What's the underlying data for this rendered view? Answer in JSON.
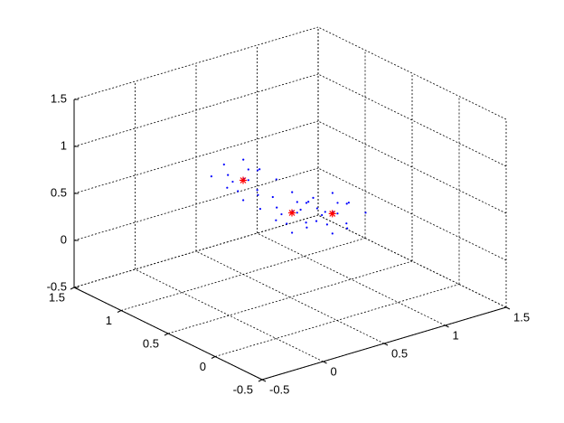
{
  "chart_data": {
    "type": "scatter3d",
    "xlim": [
      -0.5,
      1.5
    ],
    "ylim": [
      -0.5,
      1.5
    ],
    "zlim": [
      -0.5,
      1.5
    ],
    "xticks": [
      -0.5,
      0,
      0.5,
      1,
      1.5
    ],
    "yticks": [
      -0.5,
      0,
      0.5,
      1,
      1.5
    ],
    "zticks": [
      -0.5,
      0,
      0.5,
      1,
      1.5
    ],
    "grid": true,
    "series": [
      {
        "color": "#0000ff",
        "marker": "dot",
        "x": [
          0.58,
          0.4,
          0.62,
          0.45,
          0.53,
          0.36,
          0.56,
          0.65,
          0.42,
          0.5,
          0.6,
          0.38,
          0.54,
          0.47,
          0.68,
          0.34,
          0.98,
          0.8,
          1.02,
          0.85,
          0.93,
          0.76,
          0.96,
          1.05,
          0.82,
          0.9,
          1.0,
          0.78,
          0.94,
          0.87,
          1.08,
          0.74,
          1.08,
          0.9,
          1.12,
          0.95,
          1.03,
          0.86,
          1.06,
          1.15,
          0.92,
          1.0,
          1.1,
          0.88,
          1.04,
          0.97,
          1.18,
          0.84
        ],
        "y": [
          0.95,
          1.04,
          1.1,
          0.88,
          1.15,
          0.98,
          0.92,
          1.02,
          1.1,
          0.85,
          1.12,
          0.9,
          1.05,
          0.96,
          0.88,
          1.13,
          0.95,
          1.04,
          1.1,
          0.88,
          1.15,
          0.98,
          0.92,
          1.02,
          1.1,
          0.85,
          1.12,
          0.9,
          1.05,
          0.96,
          0.88,
          1.13,
          0.65,
          0.74,
          0.8,
          0.58,
          0.85,
          0.68,
          0.62,
          0.72,
          0.8,
          0.55,
          0.82,
          0.6,
          0.75,
          0.66,
          0.58,
          0.83
        ],
        "z": [
          0.6,
          0.44,
          0.52,
          0.58,
          0.4,
          0.62,
          0.36,
          0.55,
          0.65,
          0.47,
          0.42,
          0.48,
          0.68,
          0.32,
          0.5,
          0.54,
          0.1,
          -0.06,
          0.02,
          0.08,
          -0.1,
          0.12,
          -0.14,
          0.05,
          0.15,
          -0.03,
          -0.08,
          -0.02,
          0.18,
          -0.18,
          0,
          0.04,
          0.2,
          0.04,
          0.12,
          0.18,
          0,
          0.22,
          -0.04,
          0.15,
          0.25,
          0.07,
          0.02,
          0.08,
          0.28,
          -0.08,
          0.1,
          0.14
        ]
      },
      {
        "color": "#ff0000",
        "marker": "star",
        "x": [
          0.5,
          0.9,
          1.0
        ],
        "y": [
          1.0,
          1.0,
          0.7
        ],
        "z": [
          0.5,
          0.0,
          0.1
        ]
      }
    ]
  }
}
